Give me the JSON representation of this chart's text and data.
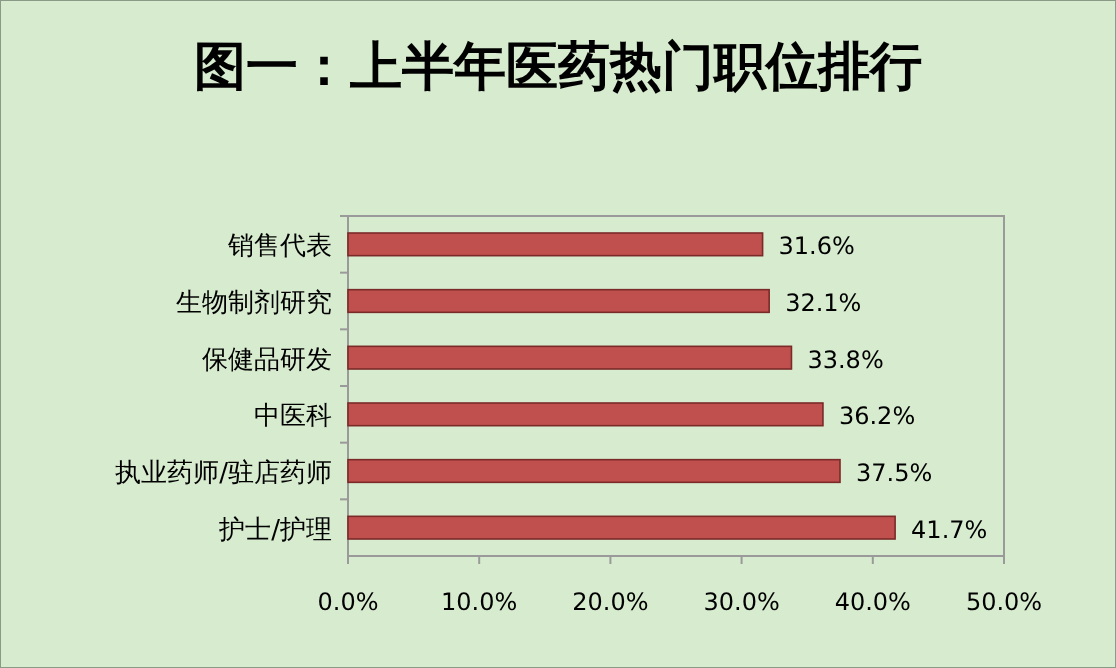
{
  "chart_data": {
    "type": "bar",
    "orientation": "horizontal",
    "title": "图一：上半年医药热门职位排行",
    "categories": [
      "销售代表",
      "生物制剂研究",
      "保健品研发",
      "中医科",
      "执业药师/驻店药师",
      "护士/护理"
    ],
    "values": [
      31.6,
      32.1,
      33.8,
      36.2,
      37.5,
      41.7
    ],
    "value_labels": [
      "31.6%",
      "32.1%",
      "33.8%",
      "36.2%",
      "37.5%",
      "41.7%"
    ],
    "color": "#c0504d",
    "xlim": [
      0,
      50
    ],
    "xticks": [
      {
        "value": 0,
        "label": "0.0%"
      },
      {
        "value": 10,
        "label": "10.0%"
      },
      {
        "value": 20,
        "label": "20.0%"
      },
      {
        "value": 30,
        "label": "30.0%"
      },
      {
        "value": 40,
        "label": "40.0%"
      },
      {
        "value": 50,
        "label": "50.0%"
      }
    ],
    "grid": false
  }
}
